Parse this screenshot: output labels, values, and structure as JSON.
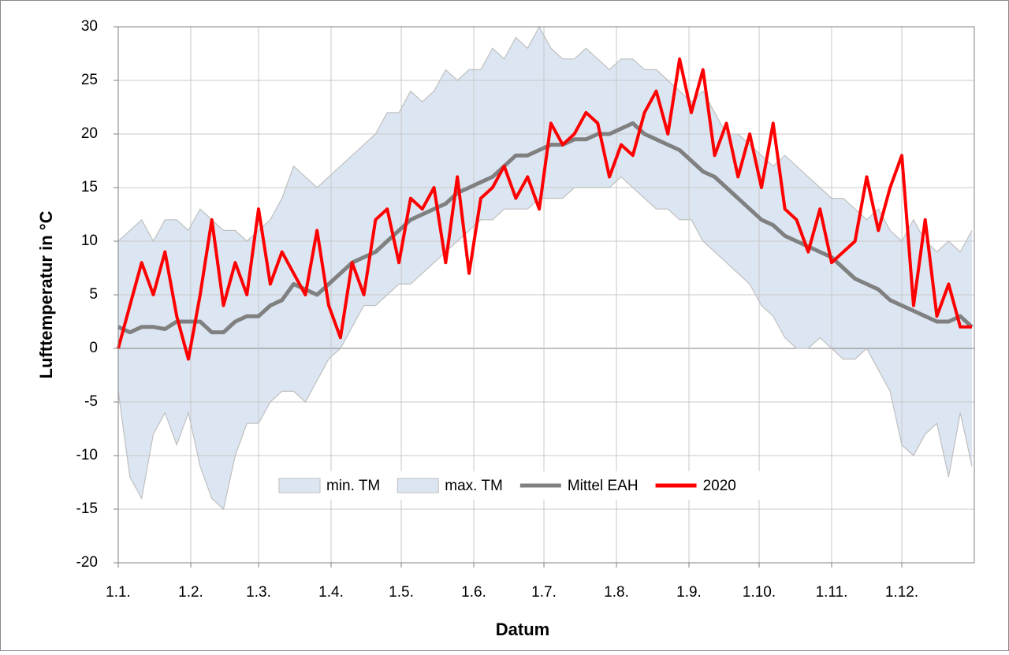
{
  "chart_data": {
    "type": "line",
    "x_label": "Datum",
    "y_label": "Lufttemperatur in °C",
    "x": [
      0,
      5,
      10,
      15,
      20,
      25,
      30,
      35,
      40,
      45,
      50,
      55,
      60,
      65,
      70,
      75,
      80,
      85,
      90,
      95,
      100,
      105,
      110,
      115,
      120,
      125,
      130,
      135,
      140,
      145,
      150,
      155,
      160,
      165,
      170,
      175,
      180,
      185,
      190,
      195,
      200,
      205,
      210,
      215,
      220,
      225,
      230,
      235,
      240,
      245,
      250,
      255,
      260,
      265,
      270,
      275,
      280,
      285,
      290,
      295,
      300,
      305,
      310,
      315,
      320,
      325,
      330,
      335,
      340,
      345,
      350,
      355,
      360,
      365
    ],
    "xlim": [
      0,
      366
    ],
    "xticks": [
      {
        "value": 0,
        "label": "1.1."
      },
      {
        "value": 31,
        "label": "1.2."
      },
      {
        "value": 60,
        "label": "1.3."
      },
      {
        "value": 91,
        "label": "1.4."
      },
      {
        "value": 121,
        "label": "1.5."
      },
      {
        "value": 152,
        "label": "1.6."
      },
      {
        "value": 182,
        "label": "1.7."
      },
      {
        "value": 213,
        "label": "1.8."
      },
      {
        "value": 244,
        "label": "1.9."
      },
      {
        "value": 274,
        "label": "1.10."
      },
      {
        "value": 305,
        "label": "1.11."
      },
      {
        "value": 335,
        "label": "1.12."
      }
    ],
    "ylim": [
      -20,
      30
    ],
    "yticks": [
      -20,
      -15,
      -10,
      -5,
      0,
      5,
      10,
      15,
      20,
      25,
      30
    ],
    "grid": true,
    "series": [
      {
        "name": "min. TM",
        "type": "area",
        "color": "#dce6f2",
        "values": [
          -4,
          -12,
          -14,
          -8,
          -6,
          -9,
          -6,
          -11,
          -14,
          -15,
          -10,
          -7,
          -7,
          -5,
          -4,
          -4,
          -5,
          -3,
          -1,
          0,
          2,
          4,
          4,
          5,
          6,
          6,
          7,
          8,
          9,
          10,
          11,
          12,
          12,
          13,
          13,
          13,
          14,
          14,
          14,
          15,
          15,
          15,
          15,
          16,
          15,
          14,
          13,
          13,
          12,
          12,
          10,
          9,
          8,
          7,
          6,
          4,
          3,
          1,
          0,
          0,
          1,
          0,
          -1,
          -1,
          0,
          -2,
          -4,
          -9,
          -10,
          -8,
          -7,
          -12,
          -6,
          -11
        ]
      },
      {
        "name": "max. TM",
        "type": "area",
        "color": "#dce6f2",
        "values": [
          10,
          11,
          12,
          10,
          12,
          12,
          11,
          13,
          12,
          11,
          11,
          10,
          11,
          12,
          14,
          17,
          16,
          15,
          16,
          17,
          18,
          19,
          20,
          22,
          22,
          24,
          23,
          24,
          26,
          25,
          26,
          26,
          28,
          27,
          29,
          28,
          30,
          28,
          27,
          27,
          28,
          27,
          26,
          27,
          27,
          26,
          26,
          25,
          24,
          23,
          24,
          22,
          20,
          20,
          19,
          18,
          17,
          18,
          17,
          16,
          15,
          14,
          14,
          13,
          12,
          13,
          11,
          10,
          12,
          10,
          9,
          10,
          9,
          11
        ]
      },
      {
        "name": "Mittel EAH",
        "type": "line",
        "color": "#808080",
        "values": [
          2,
          1.5,
          2,
          2,
          1.8,
          2.5,
          2.5,
          2.5,
          1.5,
          1.5,
          2.5,
          3,
          3,
          4,
          4.5,
          6,
          5.5,
          5,
          6,
          7,
          8,
          8.5,
          9,
          10,
          11,
          12,
          12.5,
          13,
          13.5,
          14.5,
          15,
          15.5,
          16,
          17,
          18,
          18,
          18.5,
          19,
          19,
          19.5,
          19.5,
          20,
          20,
          20.5,
          21,
          20,
          19.5,
          19,
          18.5,
          17.5,
          16.5,
          16,
          15,
          14,
          13,
          12,
          11.5,
          10.5,
          10,
          9.5,
          9,
          8.5,
          7.5,
          6.5,
          6,
          5.5,
          4.5,
          4,
          3.5,
          3,
          2.5,
          2.5,
          3,
          2
        ]
      },
      {
        "name": "2020",
        "type": "line",
        "color": "#ff0000",
        "values": [
          0,
          4,
          8,
          5,
          9,
          3,
          -1,
          5,
          12,
          4,
          8,
          5,
          13,
          6,
          9,
          7,
          5,
          11,
          4,
          1,
          8,
          5,
          12,
          13,
          8,
          14,
          13,
          15,
          8,
          16,
          7,
          14,
          15,
          17,
          14,
          16,
          13,
          21,
          19,
          20,
          22,
          21,
          16,
          19,
          18,
          22,
          24,
          20,
          27,
          22,
          26,
          18,
          21,
          16,
          20,
          15,
          21,
          13,
          12,
          9,
          13,
          8,
          9,
          10,
          16,
          11,
          15,
          18,
          4,
          12,
          3,
          6,
          2,
          2
        ]
      }
    ]
  }
}
